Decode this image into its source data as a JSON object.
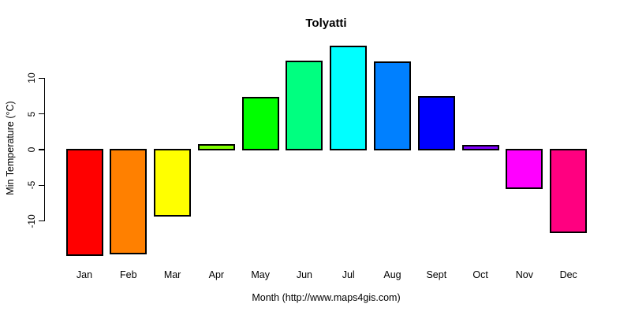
{
  "title": "Tolyatti",
  "chart_data": {
    "type": "bar",
    "title": "Tolyatti",
    "xlabel": "Month (http://www.maps4gis.com)",
    "ylabel": "Min Temperature (°C)",
    "categories": [
      "Jan",
      "Feb",
      "Mar",
      "Apr",
      "May",
      "Jun",
      "Jul",
      "Aug",
      "Sept",
      "Oct",
      "Nov",
      "Dec"
    ],
    "values": [
      -14.8,
      -14.6,
      -9.3,
      0.7,
      7.3,
      12.4,
      14.4,
      12.2,
      7.4,
      0.5,
      -5.4,
      -11.6
    ],
    "bar_colors": [
      "#FF0000",
      "#FF8000",
      "#FFFF00",
      "#80FF00",
      "#00FF00",
      "#00FF80",
      "#00FFFF",
      "#0080FF",
      "#0000FF",
      "#8000FF",
      "#FF00FF",
      "#FF0080"
    ],
    "bar_border_color": "#000000",
    "yticks": [
      10,
      5,
      0,
      -5,
      -10
    ],
    "ylim": [
      -16.5,
      15.5
    ],
    "grid": false,
    "legend": null,
    "background_color": "#FFFFFF",
    "axis_color": "#000000"
  }
}
